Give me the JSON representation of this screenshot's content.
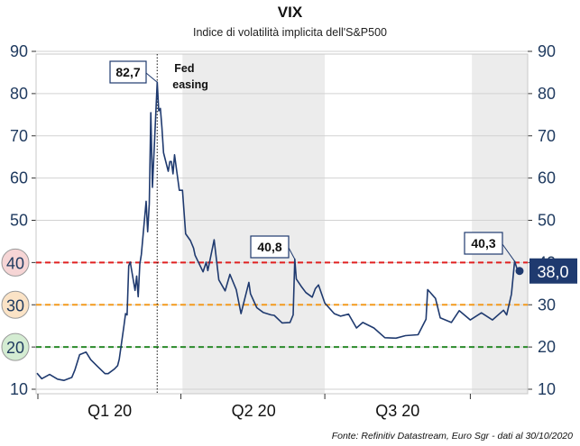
{
  "chart_data": {
    "type": "line",
    "title": "VIX",
    "subtitle": "Indice di volatilità implicita dell'S&P500",
    "source": "Fonte: Refinitiv Datastream, Euro Sgr - dati al 30/10/2020",
    "ylim": [
      10,
      90
    ],
    "yticks": [
      "10",
      "20",
      "30",
      "40",
      "50",
      "60",
      "70",
      "80",
      "90"
    ],
    "quarter_labels": [
      "Q1 20",
      "Q2 20",
      "Q3 20"
    ],
    "last_value": "38,0",
    "annotations": {
      "peak": {
        "label": "82,7",
        "value": 82.7,
        "date": "2020-03-16"
      },
      "june": {
        "label": "40,8",
        "value": 40.8,
        "date": "2020-06-11"
      },
      "october": {
        "label": "40,3",
        "value": 40.3,
        "date": "2020-10-28"
      },
      "fed": {
        "label": "Fed easing",
        "date": "2020-03-16"
      }
    },
    "reference_levels": [
      {
        "value": 40,
        "label": "40",
        "color": "#e02020",
        "fill": "#f6d5d5"
      },
      {
        "value": 30,
        "label": "30",
        "color": "#f39a1e",
        "fill": "#fbe3c6"
      },
      {
        "value": 20,
        "label": "20",
        "color": "#2a8a2a",
        "fill": "#d4ecd2"
      }
    ],
    "shaded_periods": [
      [
        "2020-04-01",
        "2020-06-30"
      ],
      [
        "2020-10-01",
        "2020-10-30"
      ]
    ],
    "series": [
      {
        "color": "#1f3a6f",
        "x": [
          "2019-12-31",
          "2020-01-03",
          "2020-01-08",
          "2020-01-13",
          "2020-01-17",
          "2020-01-22",
          "2020-01-24",
          "2020-01-27",
          "2020-01-31",
          "2020-02-03",
          "2020-02-07",
          "2020-02-12",
          "2020-02-14",
          "2020-02-18",
          "2020-02-20",
          "2020-02-21",
          "2020-02-24",
          "2020-02-25",
          "2020-02-26",
          "2020-02-27",
          "2020-02-28",
          "2020-03-02",
          "2020-03-03",
          "2020-03-04",
          "2020-03-05",
          "2020-03-06",
          "2020-03-09",
          "2020-03-10",
          "2020-03-11",
          "2020-03-12",
          "2020-03-13",
          "2020-03-16",
          "2020-03-17",
          "2020-03-18",
          "2020-03-19",
          "2020-03-20",
          "2020-03-23",
          "2020-03-24",
          "2020-03-25",
          "2020-03-26",
          "2020-03-27",
          "2020-03-30",
          "2020-04-01",
          "2020-04-03",
          "2020-04-06",
          "2020-04-08",
          "2020-04-09",
          "2020-04-14",
          "2020-04-16",
          "2020-04-17",
          "2020-04-21",
          "2020-04-24",
          "2020-04-28",
          "2020-05-01",
          "2020-05-05",
          "2020-05-08",
          "2020-05-13",
          "2020-05-14",
          "2020-05-18",
          "2020-05-22",
          "2020-05-27",
          "2020-05-29",
          "2020-06-03",
          "2020-06-08",
          "2020-06-10",
          "2020-06-11",
          "2020-06-12",
          "2020-06-15",
          "2020-06-18",
          "2020-06-22",
          "2020-06-24",
          "2020-06-26",
          "2020-06-30",
          "2020-07-06",
          "2020-07-10",
          "2020-07-15",
          "2020-07-20",
          "2020-07-24",
          "2020-07-31",
          "2020-08-07",
          "2020-08-14",
          "2020-08-20",
          "2020-08-28",
          "2020-09-02",
          "2020-09-03",
          "2020-09-08",
          "2020-09-11",
          "2020-09-18",
          "2020-09-23",
          "2020-09-30",
          "2020-10-07",
          "2020-10-14",
          "2020-10-21",
          "2020-10-23",
          "2020-10-26",
          "2020-10-28",
          "2020-10-30"
        ],
        "y": [
          13.8,
          12.5,
          13.5,
          12.4,
          12.1,
          12.8,
          14.6,
          18.2,
          18.8,
          17.0,
          15.5,
          13.7,
          13.7,
          14.8,
          15.6,
          17.1,
          25.0,
          27.9,
          27.6,
          39.2,
          40.1,
          33.4,
          36.8,
          31.9,
          39.6,
          41.9,
          54.5,
          47.3,
          53.9,
          75.5,
          57.8,
          82.7,
          75.9,
          76.5,
          72.0,
          66.0,
          61.6,
          63.9,
          63.9,
          61.0,
          65.5,
          57.1,
          57.1,
          46.8,
          45.2,
          43.4,
          41.7,
          37.8,
          40.1,
          38.1,
          45.4,
          35.9,
          33.3,
          37.2,
          33.6,
          27.9,
          35.3,
          32.6,
          29.3,
          28.2,
          27.6,
          27.5,
          25.7,
          25.8,
          27.6,
          40.8,
          36.1,
          34.4,
          32.9,
          31.8,
          33.8,
          34.7,
          30.4,
          27.9,
          27.3,
          27.8,
          24.5,
          25.8,
          24.5,
          22.2,
          22.1,
          22.7,
          22.9,
          26.6,
          33.6,
          31.5,
          26.9,
          25.8,
          28.6,
          26.4,
          28.1,
          26.4,
          28.7,
          27.6,
          32.5,
          40.3,
          38.0
        ]
      }
    ]
  }
}
